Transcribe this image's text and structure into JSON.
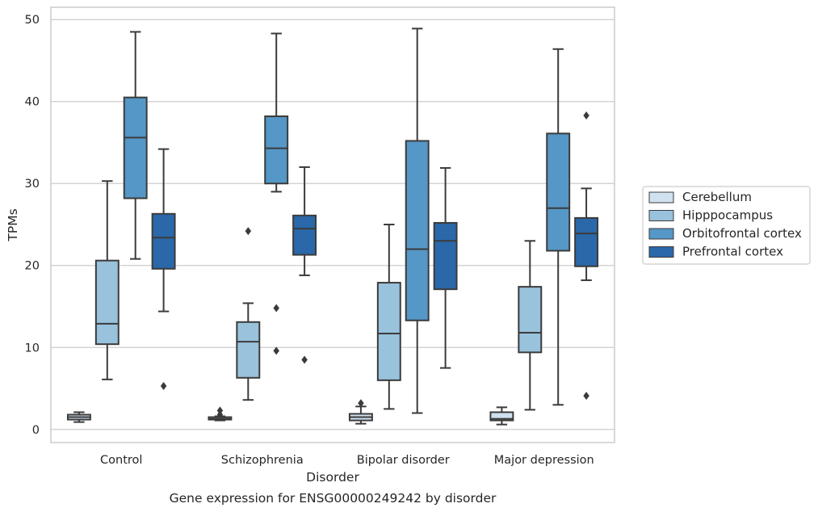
{
  "chart_data": {
    "type": "box",
    "caption": "Gene expression for ENSG00000249242 by disorder",
    "xlabel": "Disorder",
    "ylabel": "TPMs",
    "ylim": [
      -1.6,
      51.5
    ],
    "yticks": [
      0,
      10,
      20,
      30,
      40,
      50
    ],
    "grid": true,
    "legend_position": "right",
    "categories": [
      "Control",
      "Schizophrenia",
      "Bipolar disorder",
      "Major depression"
    ],
    "series": [
      {
        "name": "Cerebellum",
        "color": "#d0e1f0",
        "boxes": [
          {
            "whislo": 0.9,
            "q1": 1.2,
            "med": 1.5,
            "q3": 1.8,
            "whishi": 2.1,
            "fliers": []
          },
          {
            "whislo": 1.1,
            "q1": 1.2,
            "med": 1.3,
            "q3": 1.5,
            "whishi": 1.6,
            "fliers": [
              1.8,
              2.3
            ]
          },
          {
            "whislo": 0.7,
            "q1": 1.1,
            "med": 1.5,
            "q3": 1.9,
            "whishi": 2.8,
            "fliers": [
              3.2
            ]
          },
          {
            "whislo": 0.6,
            "q1": 1.1,
            "med": 1.3,
            "q3": 2.1,
            "whishi": 2.7,
            "fliers": []
          }
        ]
      },
      {
        "name": "Hipppocampus",
        "color": "#99c2dc",
        "boxes": [
          {
            "whislo": 6.1,
            "q1": 10.4,
            "med": 12.9,
            "q3": 20.6,
            "whishi": 30.3,
            "fliers": []
          },
          {
            "whislo": 3.6,
            "q1": 6.3,
            "med": 10.7,
            "q3": 13.1,
            "whishi": 15.4,
            "fliers": [
              24.2
            ]
          },
          {
            "whislo": 2.5,
            "q1": 6.0,
            "med": 11.7,
            "q3": 17.9,
            "whishi": 25.0,
            "fliers": []
          },
          {
            "whislo": 2.4,
            "q1": 9.4,
            "med": 11.8,
            "q3": 17.4,
            "whishi": 23.0,
            "fliers": []
          }
        ]
      },
      {
        "name": "Orbitofrontal cortex",
        "color": "#5597c6",
        "boxes": [
          {
            "whislo": 20.8,
            "q1": 28.2,
            "med": 35.6,
            "q3": 40.5,
            "whishi": 48.5,
            "fliers": []
          },
          {
            "whislo": 29.0,
            "q1": 30.0,
            "med": 34.3,
            "q3": 38.2,
            "whishi": 48.3,
            "fliers": [
              14.8,
              9.6
            ]
          },
          {
            "whislo": 2.0,
            "q1": 13.3,
            "med": 22.0,
            "q3": 35.2,
            "whishi": 48.9,
            "fliers": []
          },
          {
            "whislo": 3.0,
            "q1": 21.8,
            "med": 27.0,
            "q3": 36.1,
            "whishi": 46.4,
            "fliers": []
          }
        ]
      },
      {
        "name": "Prefrontal cortex",
        "color": "#2a68a9",
        "boxes": [
          {
            "whislo": 14.4,
            "q1": 19.6,
            "med": 23.4,
            "q3": 26.3,
            "whishi": 34.2,
            "fliers": [
              5.3
            ]
          },
          {
            "whislo": 18.8,
            "q1": 21.3,
            "med": 24.5,
            "q3": 26.1,
            "whishi": 32.0,
            "fliers": [
              8.5
            ]
          },
          {
            "whislo": 7.5,
            "q1": 17.1,
            "med": 23.0,
            "q3": 25.2,
            "whishi": 31.9,
            "fliers": []
          },
          {
            "whislo": 18.2,
            "q1": 19.9,
            "med": 23.9,
            "q3": 25.8,
            "whishi": 29.4,
            "fliers": [
              4.1,
              38.3
            ]
          }
        ]
      }
    ]
  }
}
